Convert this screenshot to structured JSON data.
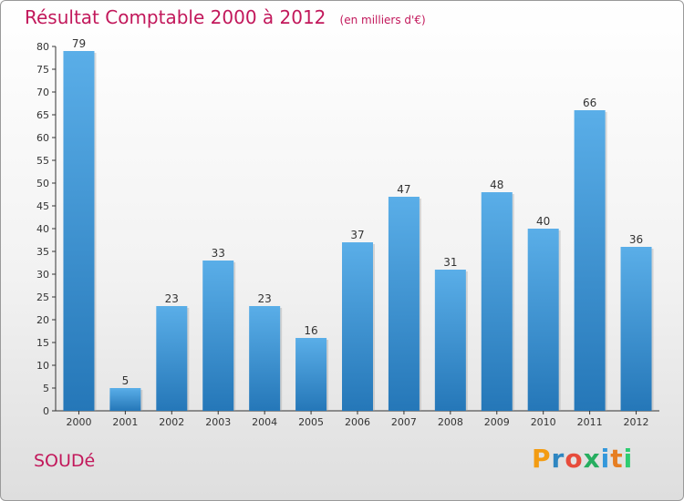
{
  "header": {
    "title": "Résultat Comptable 2000 à 2012",
    "subtitle": "(en milliers d'€)"
  },
  "footer": {
    "town": "SOUDé",
    "logo_letters": [
      "P",
      "r",
      "o",
      "x",
      "i",
      "t",
      "i"
    ]
  },
  "colors": {
    "title": "#c2185b",
    "bar_top": "#5aaee8",
    "bar_bottom": "#2577b8",
    "logo": [
      "#f39c12",
      "#2e86c1",
      "#e74c3c",
      "#27ae60",
      "#3498db",
      "#e67e22",
      "#2ecc71"
    ]
  },
  "chart_data": {
    "type": "bar",
    "title": "Résultat Comptable 2000 à 2012",
    "subtitle": "(en milliers d'€)",
    "categories": [
      "2000",
      "2001",
      "2002",
      "2003",
      "2004",
      "2005",
      "2006",
      "2007",
      "2008",
      "2009",
      "2010",
      "2011",
      "2012"
    ],
    "values": [
      79,
      5,
      23,
      33,
      23,
      16,
      37,
      47,
      31,
      48,
      40,
      66,
      36
    ],
    "xlabel": "",
    "ylabel": "",
    "ylim": [
      0,
      80
    ],
    "yticks": [
      0,
      5,
      10,
      15,
      20,
      25,
      30,
      35,
      40,
      45,
      50,
      55,
      60,
      65,
      70,
      75,
      80
    ],
    "grid": false,
    "data_labels": true
  }
}
